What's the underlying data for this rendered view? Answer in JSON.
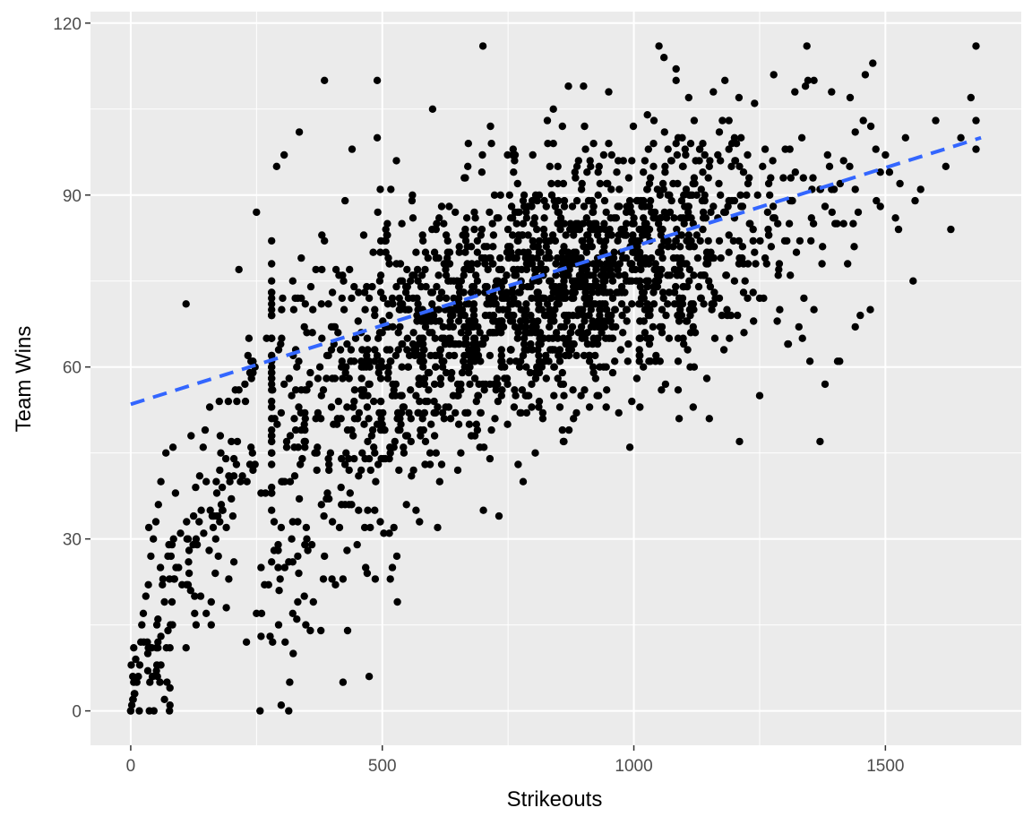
{
  "chart_data": {
    "type": "scatter",
    "title": "",
    "xlabel": "Strikeouts",
    "ylabel": "Team Wins",
    "xlim": [
      -80,
      1770
    ],
    "ylim": [
      -6,
      122
    ],
    "x_ticks": [
      0,
      500,
      1000,
      1500
    ],
    "x_tick_labels": [
      "0",
      "500",
      "1000",
      "1500"
    ],
    "y_ticks": [
      0,
      30,
      60,
      90,
      120
    ],
    "y_tick_labels": [
      "0",
      "30",
      "60",
      "90",
      "120"
    ],
    "grid": true,
    "legend": "none",
    "colors": {
      "panel_background": "#ebebeb",
      "grid_line": "#ffffff",
      "point": "#000000",
      "trend_line": "#3366ff"
    },
    "series": [
      {
        "kind": "points",
        "point_count": 2204,
        "values": [
          [
            0,
            0
          ],
          [
            2,
            1
          ],
          [
            5,
            2
          ],
          [
            8,
            3
          ],
          [
            12,
            5
          ],
          [
            15,
            6
          ],
          [
            18,
            8
          ],
          [
            10,
            9
          ],
          [
            20,
            12
          ],
          [
            22,
            15
          ],
          [
            25,
            17
          ],
          [
            30,
            20
          ],
          [
            35,
            22
          ],
          [
            40,
            27
          ],
          [
            45,
            30
          ],
          [
            50,
            33
          ],
          [
            55,
            36
          ],
          [
            60,
            40
          ],
          [
            70,
            45
          ],
          [
            85,
            30
          ],
          [
            95,
            25
          ],
          [
            110,
            71
          ],
          [
            120,
            48
          ],
          [
            140,
            35
          ],
          [
            160,
            15
          ],
          [
            170,
            40
          ],
          [
            190,
            18
          ],
          [
            200,
            47
          ],
          [
            215,
            77
          ],
          [
            230,
            12
          ],
          [
            240,
            58
          ],
          [
            250,
            87
          ],
          [
            260,
            17
          ],
          [
            270,
            65
          ],
          [
            280,
            62
          ],
          [
            290,
            95
          ],
          [
            300,
            70
          ],
          [
            320,
            55
          ],
          [
            330,
            16
          ],
          [
            335,
            101
          ],
          [
            350,
            30
          ],
          [
            370,
            42
          ],
          [
            380,
            83
          ],
          [
            385,
            110
          ],
          [
            400,
            23
          ],
          [
            420,
            72
          ],
          [
            430,
            53
          ],
          [
            440,
            98
          ],
          [
            450,
            29
          ],
          [
            470,
            65
          ],
          [
            490,
            110
          ],
          [
            500,
            60
          ],
          [
            510,
            85
          ],
          [
            520,
            25
          ],
          [
            530,
            19
          ],
          [
            540,
            75
          ],
          [
            560,
            90
          ],
          [
            580,
            62
          ],
          [
            600,
            105
          ],
          [
            610,
            32
          ],
          [
            630,
            80
          ],
          [
            650,
            42
          ],
          [
            670,
            95
          ],
          [
            690,
            55
          ],
          [
            700,
            116
          ],
          [
            720,
            78
          ],
          [
            740,
            70
          ],
          [
            760,
            98
          ],
          [
            770,
            43
          ],
          [
            780,
            40
          ],
          [
            800,
            85
          ],
          [
            820,
            65
          ],
          [
            840,
            105
          ],
          [
            860,
            47
          ],
          [
            870,
            109
          ],
          [
            890,
            75
          ],
          [
            900,
            109
          ],
          [
            920,
            88
          ],
          [
            940,
            60
          ],
          [
            950,
            108
          ],
          [
            970,
            52
          ],
          [
            990,
            93
          ],
          [
            1000,
            80
          ],
          [
            1020,
            68
          ],
          [
            1040,
            103
          ],
          [
            1050,
            116
          ],
          [
            1060,
            114
          ],
          [
            1080,
            86
          ],
          [
            1090,
            51
          ],
          [
            1110,
            75
          ],
          [
            1130,
            96
          ],
          [
            1150,
            51
          ],
          [
            1170,
            82
          ],
          [
            1190,
            65
          ],
          [
            1200,
            100
          ],
          [
            1210,
            47
          ],
          [
            1230,
            85
          ],
          [
            1240,
            106
          ],
          [
            1250,
            55
          ],
          [
            1270,
            90
          ],
          [
            1290,
            70
          ],
          [
            1310,
            98
          ],
          [
            1330,
            82
          ],
          [
            1350,
            61
          ],
          [
            1370,
            47
          ],
          [
            1380,
            57
          ],
          [
            1400,
            85
          ],
          [
            1410,
            92
          ],
          [
            1430,
            107
          ],
          [
            1450,
            69
          ],
          [
            1460,
            111
          ],
          [
            1470,
            70
          ],
          [
            1490,
            94
          ],
          [
            1500,
            97
          ],
          [
            1520,
            86
          ],
          [
            1540,
            100
          ],
          [
            1555,
            75
          ],
          [
            1570,
            91
          ],
          [
            1600,
            103
          ],
          [
            1620,
            95
          ],
          [
            1630,
            84
          ],
          [
            1650,
            100
          ],
          [
            1670,
            107
          ],
          [
            1680,
            103
          ]
        ]
      },
      {
        "kind": "trend",
        "name": "",
        "style": "dashed",
        "values": [
          [
            0,
            53.5
          ],
          [
            1690,
            100
          ]
        ]
      }
    ]
  }
}
